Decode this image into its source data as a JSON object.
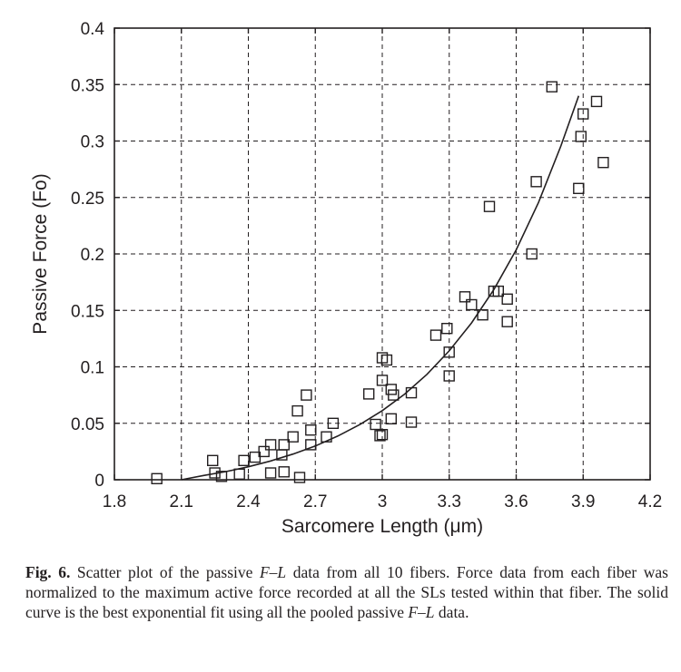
{
  "chart_data": {
    "type": "scatter",
    "xlabel": "Sarcomere Length (μm)",
    "ylabel": "Passive Force (Fo)",
    "xlim": [
      1.8,
      4.2
    ],
    "ylim": [
      0,
      0.4
    ],
    "xticks": [
      1.8,
      2.1,
      2.4,
      2.7,
      3.0,
      3.3,
      3.6,
      3.9,
      4.2
    ],
    "xtick_labels": [
      "1.8",
      "2.1",
      "2.4",
      "2.7",
      "3",
      "3.3",
      "3.6",
      "3.9",
      "4.2"
    ],
    "yticks": [
      0,
      0.05,
      0.1,
      0.15,
      0.2,
      0.25,
      0.3,
      0.35,
      0.4
    ],
    "ytick_labels": [
      "0",
      "0.05",
      "0.1",
      "0.15",
      "0.2",
      "0.25",
      "0.3",
      "0.35",
      "0.4"
    ],
    "grid": true,
    "grid_style": "dashed",
    "marker": "open-square",
    "points": [
      {
        "x": 1.99,
        "y": 0.001
      },
      {
        "x": 2.24,
        "y": 0.017
      },
      {
        "x": 2.25,
        "y": 0.006
      },
      {
        "x": 2.28,
        "y": 0.003
      },
      {
        "x": 2.36,
        "y": 0.005
      },
      {
        "x": 2.38,
        "y": 0.017
      },
      {
        "x": 2.43,
        "y": 0.02
      },
      {
        "x": 2.47,
        "y": 0.025
      },
      {
        "x": 2.5,
        "y": 0.031
      },
      {
        "x": 2.5,
        "y": 0.006
      },
      {
        "x": 2.55,
        "y": 0.022
      },
      {
        "x": 2.56,
        "y": 0.031
      },
      {
        "x": 2.56,
        "y": 0.007
      },
      {
        "x": 2.6,
        "y": 0.038
      },
      {
        "x": 2.62,
        "y": 0.061
      },
      {
        "x": 2.63,
        "y": 0.002
      },
      {
        "x": 2.66,
        "y": 0.075
      },
      {
        "x": 2.68,
        "y": 0.044
      },
      {
        "x": 2.68,
        "y": 0.031
      },
      {
        "x": 2.75,
        "y": 0.038
      },
      {
        "x": 2.78,
        "y": 0.05
      },
      {
        "x": 2.94,
        "y": 0.076
      },
      {
        "x": 2.97,
        "y": 0.049
      },
      {
        "x": 2.99,
        "y": 0.039
      },
      {
        "x": 3.0,
        "y": 0.04
      },
      {
        "x": 3.0,
        "y": 0.108
      },
      {
        "x": 3.0,
        "y": 0.088
      },
      {
        "x": 3.02,
        "y": 0.106
      },
      {
        "x": 3.04,
        "y": 0.08
      },
      {
        "x": 3.04,
        "y": 0.054
      },
      {
        "x": 3.05,
        "y": 0.075
      },
      {
        "x": 3.13,
        "y": 0.077
      },
      {
        "x": 3.13,
        "y": 0.051
      },
      {
        "x": 3.24,
        "y": 0.128
      },
      {
        "x": 3.29,
        "y": 0.134
      },
      {
        "x": 3.3,
        "y": 0.113
      },
      {
        "x": 3.3,
        "y": 0.092
      },
      {
        "x": 3.37,
        "y": 0.162
      },
      {
        "x": 3.4,
        "y": 0.155
      },
      {
        "x": 3.45,
        "y": 0.146
      },
      {
        "x": 3.48,
        "y": 0.242
      },
      {
        "x": 3.5,
        "y": 0.167
      },
      {
        "x": 3.52,
        "y": 0.167
      },
      {
        "x": 3.56,
        "y": 0.16
      },
      {
        "x": 3.56,
        "y": 0.14
      },
      {
        "x": 3.67,
        "y": 0.2
      },
      {
        "x": 3.69,
        "y": 0.264
      },
      {
        "x": 3.76,
        "y": 0.348
      },
      {
        "x": 3.88,
        "y": 0.258
      },
      {
        "x": 3.89,
        "y": 0.304
      },
      {
        "x": 3.9,
        "y": 0.324
      },
      {
        "x": 3.96,
        "y": 0.335
      },
      {
        "x": 3.99,
        "y": 0.281
      }
    ],
    "fit": {
      "type": "exponential",
      "x": [
        2.1,
        2.2,
        2.3,
        2.4,
        2.5,
        2.6,
        2.7,
        2.8,
        2.9,
        3.0,
        3.1,
        3.2,
        3.3,
        3.4,
        3.5,
        3.6,
        3.7,
        3.8,
        3.88
      ],
      "y": [
        0.0,
        0.0038,
        0.0072,
        0.0115,
        0.0166,
        0.0227,
        0.0299,
        0.0386,
        0.0489,
        0.0612,
        0.0758,
        0.0933,
        0.1141,
        0.1389,
        0.1684,
        0.2036,
        0.2456,
        0.2956,
        0.34
      ]
    }
  },
  "caption": {
    "label": "Fig. 6.",
    "text_1": " Scatter plot of the passive ",
    "fl_1": "F–L",
    "text_2": " data from all 10 fibers. Force data from each fiber was normalized to the maximum active force recorded at all the SLs tested within that fiber. The solid curve is the best exponential fit using all the pooled passive ",
    "fl_2": "F–L",
    "text_3": " data."
  }
}
